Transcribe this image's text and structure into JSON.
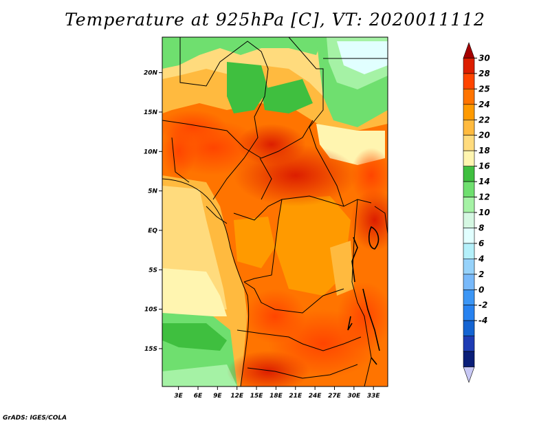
{
  "title": "Temperature at 925hPa [C], VT: 2020011112",
  "credit": "GrADS: IGES/COLA",
  "map": {
    "lon_labels": [
      "3E",
      "6E",
      "9E",
      "12E",
      "15E",
      "18E",
      "21E",
      "24E",
      "27E",
      "30E",
      "33E"
    ],
    "lon_values": [
      3,
      6,
      9,
      12,
      15,
      18,
      21,
      24,
      27,
      30,
      33
    ],
    "lon_range": [
      0.5,
      35.2
    ],
    "lat_labels": [
      "20N",
      "15N",
      "10N",
      "5N",
      "EQ",
      "5S",
      "10S",
      "15S"
    ],
    "lat_values": [
      20,
      15,
      10,
      5,
      0,
      -5,
      -10,
      -15
    ],
    "lat_range": [
      -19.8,
      24.5
    ]
  },
  "colorbar": {
    "labels": [
      "30",
      "28",
      "25",
      "24",
      "22",
      "20",
      "18",
      "16",
      "14",
      "12",
      "10",
      "8",
      "6",
      "4",
      "2",
      "0",
      "-2",
      "-4"
    ],
    "colors": [
      "#a50000",
      "#dc1e00",
      "#ff4500",
      "#ff7400",
      "#ff9a00",
      "#ffba3f",
      "#ffdb7d",
      "#fff5b0",
      "#3fbf3f",
      "#6fdf6f",
      "#a5f2a5",
      "#d5f7e2",
      "#e1ffff",
      "#b4f0fa",
      "#96d2fa",
      "#78b9fa",
      "#3c96f5",
      "#2882f0",
      "#1464d2",
      "#1e3cb4",
      "#0a1e78",
      "#c8c8f5"
    ]
  }
}
